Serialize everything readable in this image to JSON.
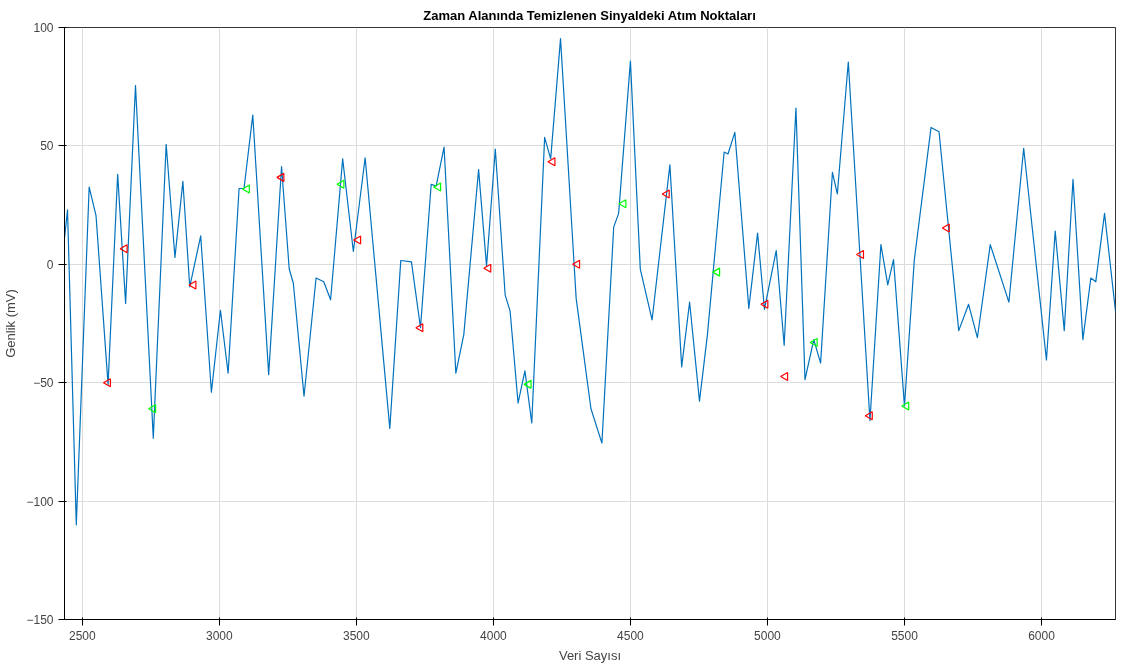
{
  "chart_data": {
    "type": "line",
    "title": "Zaman Alanında Temizlenen Sinyaldeki Atım Noktaları",
    "xlabel": "Veri Sayısı",
    "ylabel": "Genlik (mV)",
    "xlim": [
      2435,
      6270
    ],
    "ylim": [
      -150,
      100
    ],
    "xticks": [
      2500,
      3000,
      3500,
      4000,
      4500,
      5000,
      5500,
      6000
    ],
    "yticks": [
      -150,
      -100,
      -50,
      0,
      50,
      100
    ],
    "grid": true,
    "series": [
      {
        "color": "#0072bd",
        "x": [
          2435,
          2446,
          2478,
          2525,
          2550,
          2594,
          2629,
          2658,
          2694,
          2759,
          2806,
          2838,
          2867,
          2892,
          2932,
          2971,
          3004,
          3032,
          3072,
          3090,
          3122,
          3180,
          3227,
          3255,
          3270,
          3309,
          3353,
          3381,
          3406,
          3450,
          3489,
          3532,
          3622,
          3662,
          3701,
          3734,
          3773,
          3791,
          3820,
          3863,
          3892,
          3946,
          3975,
          4007,
          4043,
          4061,
          4090,
          4115,
          4140,
          4187,
          4209,
          4245,
          4302,
          4356,
          4396,
          4439,
          4457,
          4500,
          4536,
          4579,
          4644,
          4687,
          4716,
          4752,
          4781,
          4842,
          4856,
          4881,
          4932,
          4964,
          4989,
          5032,
          5061,
          5104,
          5137,
          5169,
          5194,
          5237,
          5255,
          5295,
          5374,
          5414,
          5439,
          5460,
          5500,
          5536,
          5597,
          5626,
          5698,
          5734,
          5766,
          5813,
          5881,
          5935,
          6018,
          6050,
          6083,
          6115,
          6151,
          6180,
          6198,
          6230,
          6270
        ],
        "values": [
          11,
          23,
          -110,
          32.6,
          20.6,
          -50.8,
          38,
          -16.5,
          75.5,
          -73.4,
          50.7,
          2.9,
          35,
          -9.5,
          12,
          -54,
          -19.4,
          -46,
          32,
          32,
          63,
          -46.6,
          41.3,
          -2,
          -8,
          -55.7,
          -5.8,
          -7.4,
          -15,
          44.5,
          5.4,
          45,
          -69.3,
          1.6,
          1,
          -26.8,
          33.8,
          33,
          49.5,
          -46,
          -29.7,
          40,
          -0.8,
          48.7,
          -13,
          -19.8,
          -58.6,
          -45,
          -67,
          53.6,
          44.5,
          95.3,
          -14.4,
          -61,
          -75.5,
          15.7,
          21.5,
          85.8,
          -2,
          -23.5,
          42,
          -43.3,
          -16,
          -57.8,
          -29.7,
          47.4,
          46.6,
          55.7,
          -18.6,
          13.2,
          -19,
          5.8,
          -34.2,
          66,
          -48.7,
          -31.8,
          -41.7,
          38.8,
          29.7,
          85.4,
          -66,
          8.3,
          -8.7,
          2,
          -59.8,
          2,
          57.8,
          56,
          -28,
          -16.9,
          -31,
          8.3,
          -16,
          49,
          -40.4,
          14,
          -28,
          35.9,
          -31.8,
          -5.8,
          -7.4,
          21.5,
          -19.8
        ]
      },
      {
        "type": "scatter",
        "marker": "triangle",
        "color": "#ff0000",
        "x": [
          2594,
          2655,
          2906,
          3227,
          3507,
          3734,
          3982,
          4216,
          4306,
          4633,
          4993,
          5065,
          5342,
          5374,
          5655
        ],
        "values": [
          -50,
          6.6,
          -8.7,
          36.7,
          10.3,
          -26.8,
          -1.7,
          43.3,
          0,
          29.7,
          -16.9,
          -47.4,
          4.1,
          -64,
          15.3
        ]
      },
      {
        "type": "scatter",
        "marker": "triangle",
        "color": "#00ff00",
        "x": [
          2759,
          3101,
          3446,
          3799,
          4129,
          4475,
          4817,
          5173,
          5507
        ],
        "values": [
          -61,
          31.8,
          33.8,
          32.6,
          -50.7,
          25.6,
          -3.3,
          -33,
          -59.8
        ]
      }
    ]
  }
}
